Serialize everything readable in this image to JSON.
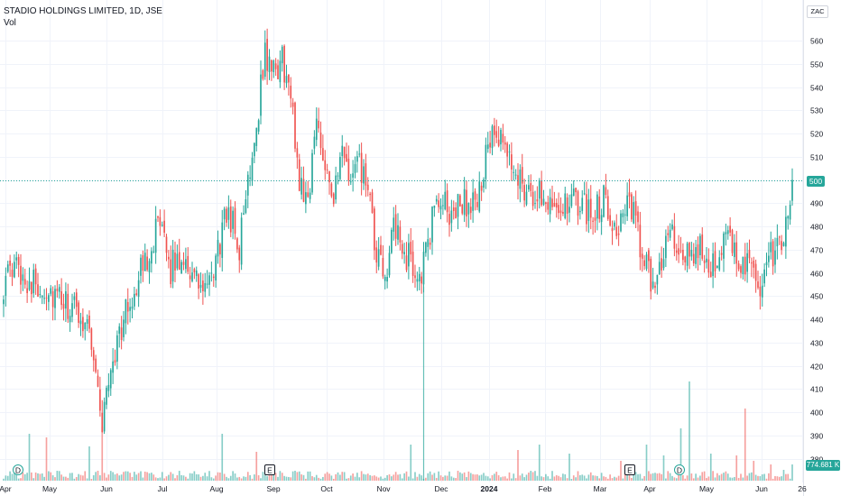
{
  "legend": {
    "title": "STADIO HOLDINGS LIMITED, 1D, JSE",
    "volume_label": "Vol"
  },
  "currency": "ZAC",
  "last_price": "500",
  "volume_value": "774.681 K",
  "colors": {
    "up": "#26a69a",
    "down": "#ef5350",
    "grid": "#f0f3fa",
    "price_line": "#26a69a"
  },
  "event_markers": [
    {
      "label": "D",
      "date": "Apr"
    },
    {
      "label": "E",
      "date": "Sep"
    },
    {
      "label": "E",
      "date": "Mar"
    },
    {
      "label": "D",
      "date": "Apr"
    }
  ],
  "chart_data": {
    "type": "candlestick",
    "title": "STADIO HOLDINGS LIMITED, 1D, JSE",
    "y_ticks": [
      380,
      390,
      400,
      410,
      420,
      430,
      440,
      450,
      460,
      470,
      480,
      490,
      500,
      510,
      520,
      530,
      540,
      550,
      560
    ],
    "y_tick_labels": [
      "380",
      "390",
      "400",
      "410",
      "420",
      "430",
      "440",
      "450",
      "460",
      "470",
      "480",
      "490",
      "500",
      "510",
      "520",
      "530",
      "540",
      "550",
      "560"
    ],
    "ylim": [
      367,
      567
    ],
    "x_tick_labels": [
      "Apr",
      "May",
      "Jun",
      "Jul",
      "Aug",
      "Sep",
      "Oct",
      "Nov",
      "Dec",
      "2024",
      "Feb",
      "Mar",
      "Apr",
      "May",
      "Jun",
      "26"
    ],
    "grid": true,
    "volume_peak": 17,
    "anchors": [
      {
        "i": 0,
        "p": 455
      },
      {
        "i": 6,
        "p": 462
      },
      {
        "i": 14,
        "p": 455
      },
      {
        "i": 20,
        "p": 453
      },
      {
        "i": 28,
        "p": 446
      },
      {
        "i": 34,
        "p": 443
      },
      {
        "i": 40,
        "p": 438
      },
      {
        "i": 46,
        "p": 395
      },
      {
        "i": 50,
        "p": 420
      },
      {
        "i": 56,
        "p": 440
      },
      {
        "i": 62,
        "p": 455
      },
      {
        "i": 68,
        "p": 470
      },
      {
        "i": 72,
        "p": 480
      },
      {
        "i": 78,
        "p": 462
      },
      {
        "i": 84,
        "p": 468
      },
      {
        "i": 90,
        "p": 455
      },
      {
        "i": 96,
        "p": 452
      },
      {
        "i": 100,
        "p": 470
      },
      {
        "i": 105,
        "p": 488
      },
      {
        "i": 110,
        "p": 470
      },
      {
        "i": 114,
        "p": 500
      },
      {
        "i": 118,
        "p": 525
      },
      {
        "i": 122,
        "p": 555
      },
      {
        "i": 126,
        "p": 545
      },
      {
        "i": 130,
        "p": 552
      },
      {
        "i": 134,
        "p": 535
      },
      {
        "i": 138,
        "p": 500
      },
      {
        "i": 142,
        "p": 492
      },
      {
        "i": 146,
        "p": 525
      },
      {
        "i": 150,
        "p": 510
      },
      {
        "i": 154,
        "p": 492
      },
      {
        "i": 158,
        "p": 510
      },
      {
        "i": 162,
        "p": 500
      },
      {
        "i": 166,
        "p": 506
      },
      {
        "i": 170,
        "p": 495
      },
      {
        "i": 174,
        "p": 465
      },
      {
        "i": 178,
        "p": 460
      },
      {
        "i": 182,
        "p": 478
      },
      {
        "i": 186,
        "p": 470
      },
      {
        "i": 190,
        "p": 465
      },
      {
        "i": 194,
        "p": 458
      },
      {
        "i": 198,
        "p": 470
      },
      {
        "i": 202,
        "p": 495
      },
      {
        "i": 206,
        "p": 488
      },
      {
        "i": 210,
        "p": 485
      },
      {
        "i": 214,
        "p": 492
      },
      {
        "i": 218,
        "p": 487
      },
      {
        "i": 222,
        "p": 495
      },
      {
        "i": 226,
        "p": 515
      },
      {
        "i": 230,
        "p": 518
      },
      {
        "i": 234,
        "p": 512
      },
      {
        "i": 238,
        "p": 505
      },
      {
        "i": 242,
        "p": 500
      },
      {
        "i": 246,
        "p": 490
      },
      {
        "i": 250,
        "p": 495
      },
      {
        "i": 256,
        "p": 492
      },
      {
        "i": 262,
        "p": 488
      },
      {
        "i": 268,
        "p": 490
      },
      {
        "i": 274,
        "p": 486
      },
      {
        "i": 280,
        "p": 492
      },
      {
        "i": 286,
        "p": 480
      },
      {
        "i": 290,
        "p": 488
      },
      {
        "i": 294,
        "p": 485
      },
      {
        "i": 298,
        "p": 468
      },
      {
        "i": 302,
        "p": 455
      },
      {
        "i": 306,
        "p": 462
      },
      {
        "i": 310,
        "p": 478
      },
      {
        "i": 314,
        "p": 470
      },
      {
        "i": 318,
        "p": 465
      },
      {
        "i": 322,
        "p": 468
      },
      {
        "i": 326,
        "p": 470
      },
      {
        "i": 330,
        "p": 465
      },
      {
        "i": 334,
        "p": 470
      },
      {
        "i": 338,
        "p": 472
      },
      {
        "i": 342,
        "p": 468
      },
      {
        "i": 346,
        "p": 465
      },
      {
        "i": 350,
        "p": 458
      },
      {
        "i": 354,
        "p": 452
      },
      {
        "i": 358,
        "p": 468
      },
      {
        "i": 362,
        "p": 470
      },
      {
        "i": 366,
        "p": 482
      },
      {
        "i": 368,
        "p": 500
      }
    ],
    "series_count": 369,
    "last_close": 500,
    "last_volume": "774.681 K"
  }
}
